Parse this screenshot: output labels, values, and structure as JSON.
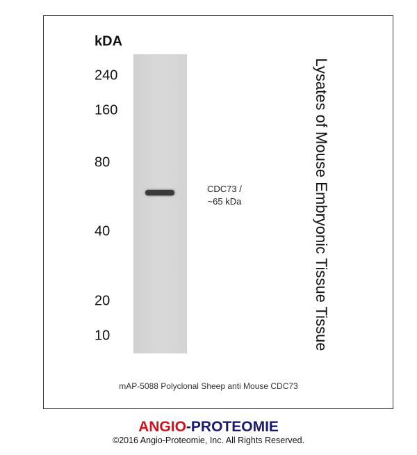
{
  "markers": {
    "unit": "kDA",
    "values": [
      "240",
      "160",
      "80",
      "40",
      "20",
      "10"
    ]
  },
  "band_label": {
    "line1": "CDC73 /",
    "line2": "~65 kDa"
  },
  "sample_label": "Lysates of Mouse Embryonic Tissue Tissue",
  "caption": "mAP-5088 Polyclonal Sheep anti Mouse CDC73",
  "brand": {
    "part1": "ANGIO",
    "sep": "-",
    "part2": "PROTEOMIE",
    "color1": "#d0101a",
    "color2": "#1a1a6e"
  },
  "copyright": "©2016 Angio-Proteomie, Inc.  All Rights Reserved."
}
